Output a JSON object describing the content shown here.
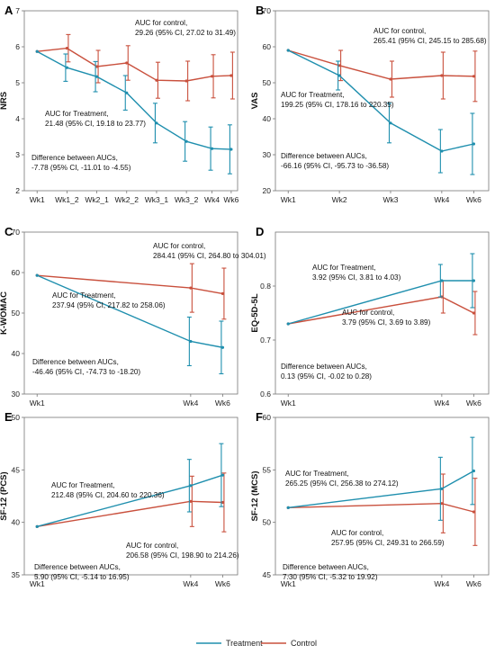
{
  "colors": {
    "treatment": "#1f8fae",
    "control": "#c9503d",
    "axis": "#777777",
    "grid": "#e6e6e6"
  },
  "legend": {
    "treatment": "Treatment",
    "control": "Control"
  },
  "chart_data": [
    {
      "panel": "A",
      "type": "line",
      "ylabel": "NRS",
      "categories": [
        "Wk1",
        "Wk1_2",
        "Wk2_1",
        "Wk2_2",
        "Wk3_1",
        "Wk3_2",
        "Wk4",
        "Wk6"
      ],
      "ylim": [
        2,
        7
      ],
      "yticks": [
        2,
        3,
        4,
        5,
        6,
        7
      ],
      "series": [
        {
          "name": "Treatment",
          "values": [
            5.87,
            5.42,
            5.17,
            4.72,
            3.88,
            3.37,
            3.17,
            3.15
          ],
          "err": [
            0,
            0.38,
            0.42,
            0.48,
            0.55,
            0.55,
            0.6,
            0.68
          ]
        },
        {
          "name": "Control",
          "values": [
            5.87,
            5.96,
            5.45,
            5.55,
            5.07,
            5.05,
            5.18,
            5.2
          ],
          "err": [
            0,
            0.38,
            0.45,
            0.48,
            0.5,
            0.55,
            0.6,
            0.65
          ]
        }
      ],
      "annotations": [
        {
          "lines": [
            "AUC for control,",
            "29.26 (95% CI, 27.02 to 31.49)"
          ]
        },
        {
          "lines": [
            "AUC for Treatment,",
            "21.48 (95% CI, 19.18 to 23.77)"
          ]
        },
        {
          "lines": [
            "Difference between AUCs,",
            "-7.78 (95% CI, -11.01 to -4.55)"
          ]
        }
      ]
    },
    {
      "panel": "B",
      "type": "line",
      "ylabel": "VAS",
      "categories": [
        "Wk1",
        "Wk2",
        "Wk3",
        "Wk4",
        "Wk6"
      ],
      "ylim": [
        20,
        70
      ],
      "yticks": [
        20,
        30,
        40,
        50,
        60,
        70
      ],
      "series": [
        {
          "name": "Treatment",
          "values": [
            59,
            52,
            38.8,
            31,
            33
          ],
          "err": [
            0,
            4,
            5.5,
            6,
            8.5
          ]
        },
        {
          "name": "Control",
          "values": [
            59,
            54.8,
            51,
            52,
            51.8
          ],
          "err": [
            0,
            4.2,
            5,
            6.5,
            7
          ]
        }
      ],
      "annotations": [
        {
          "lines": [
            "AUC for control,",
            "265.41 (95% CI, 245.15 to 285.68)"
          ]
        },
        {
          "lines": [
            "AUC for Treatment,",
            "199.25 (95% CI, 178.16 to 220.35)"
          ]
        },
        {
          "lines": [
            "Difference between AUCs,",
            "-66.16 (95% CI, -95.73 to -36.58)"
          ]
        }
      ]
    },
    {
      "panel": "C",
      "type": "line",
      "ylabel": "K-WOMAC",
      "categories": [
        "Wk1",
        "Wk4",
        "Wk6"
      ],
      "ylim": [
        30,
        70
      ],
      "yticks": [
        30,
        40,
        50,
        60,
        70
      ],
      "series": [
        {
          "name": "Treatment",
          "values": [
            59.3,
            43,
            41.5
          ],
          "err": [
            0,
            6,
            6.5
          ]
        },
        {
          "name": "Control",
          "values": [
            59.3,
            56.2,
            54.8
          ],
          "err": [
            0,
            6,
            6.3
          ]
        }
      ],
      "annotations": [
        {
          "lines": [
            "AUC for control,",
            "284.41 (95% CI, 264.80 to 304.01)"
          ]
        },
        {
          "lines": [
            "AUC for Treatment,",
            "237.94 (95% CI, 217.82 to 258.06)"
          ]
        },
        {
          "lines": [
            "Difference between AUCs,",
            "-46.46 (95% CI, -74.73 to -18.20)"
          ]
        }
      ]
    },
    {
      "panel": "D",
      "type": "line",
      "ylabel": "EQ-5D-5L",
      "categories": [
        "Wk1",
        "Wk4",
        "Wk6"
      ],
      "ylim": [
        0.6,
        0.9
      ],
      "yticks": [
        0.6,
        0.7,
        0.8
      ],
      "series": [
        {
          "name": "Treatment",
          "values": [
            0.73,
            0.81,
            0.81
          ],
          "err": [
            0,
            0.03,
            0.05
          ]
        },
        {
          "name": "Control",
          "values": [
            0.73,
            0.78,
            0.75
          ],
          "err": [
            0,
            0.03,
            0.04
          ]
        }
      ],
      "annotations": [
        {
          "lines": [
            "AUC for Treatment,",
            "3.92 (95% CI, 3.81 to 4.03)"
          ]
        },
        {
          "lines": [
            "AUC for control,",
            "3.79 (95% CI, 3.69 to 3.89)"
          ]
        },
        {
          "lines": [
            "Difference between AUCs,",
            "0.13 (95% CI, -0.02 to 0.28)"
          ]
        }
      ]
    },
    {
      "panel": "E",
      "type": "line",
      "ylabel": "SF-12 (PCS)",
      "categories": [
        "Wk1",
        "Wk4",
        "Wk6"
      ],
      "ylim": [
        35,
        50
      ],
      "yticks": [
        35,
        40,
        45,
        50
      ],
      "series": [
        {
          "name": "Treatment",
          "values": [
            39.6,
            43.5,
            44.5
          ],
          "err": [
            0,
            2.5,
            3
          ]
        },
        {
          "name": "Control",
          "values": [
            39.6,
            42,
            41.9
          ],
          "err": [
            0,
            2.4,
            2.8
          ]
        }
      ],
      "annotations": [
        {
          "lines": [
            "AUC for Treatment,",
            "212.48 (95% CI, 204.60 to 220.36)"
          ]
        },
        {
          "lines": [
            "AUC for control,",
            "206.58 (95% CI, 198.90 to 214.26)"
          ]
        },
        {
          "lines": [
            "Difference between AUCs,",
            "5.90 (95% CI, -5.14 to 16.95)"
          ]
        }
      ]
    },
    {
      "panel": "F",
      "type": "line",
      "ylabel": "SF-12 (MCS)",
      "categories": [
        "Wk1",
        "Wk4",
        "Wk6"
      ],
      "ylim": [
        45,
        60
      ],
      "yticks": [
        45,
        50,
        55,
        60
      ],
      "series": [
        {
          "name": "Treatment",
          "values": [
            51.4,
            53.2,
            54.9
          ],
          "err": [
            0,
            3,
            3.2
          ]
        },
        {
          "name": "Control",
          "values": [
            51.4,
            51.8,
            51
          ],
          "err": [
            0,
            2.8,
            3.2
          ]
        }
      ],
      "annotations": [
        {
          "lines": [
            "AUC for Treatment,",
            "265.25 (95% CI, 256.38 to 274.12)"
          ]
        },
        {
          "lines": [
            "AUC for control,",
            "257.95 (95% CI, 249.31 to 266.59)"
          ]
        },
        {
          "lines": [
            "Difference between AUCs,",
            "7.30 (95% CI, -5.32 to 19.92)"
          ]
        }
      ]
    }
  ]
}
